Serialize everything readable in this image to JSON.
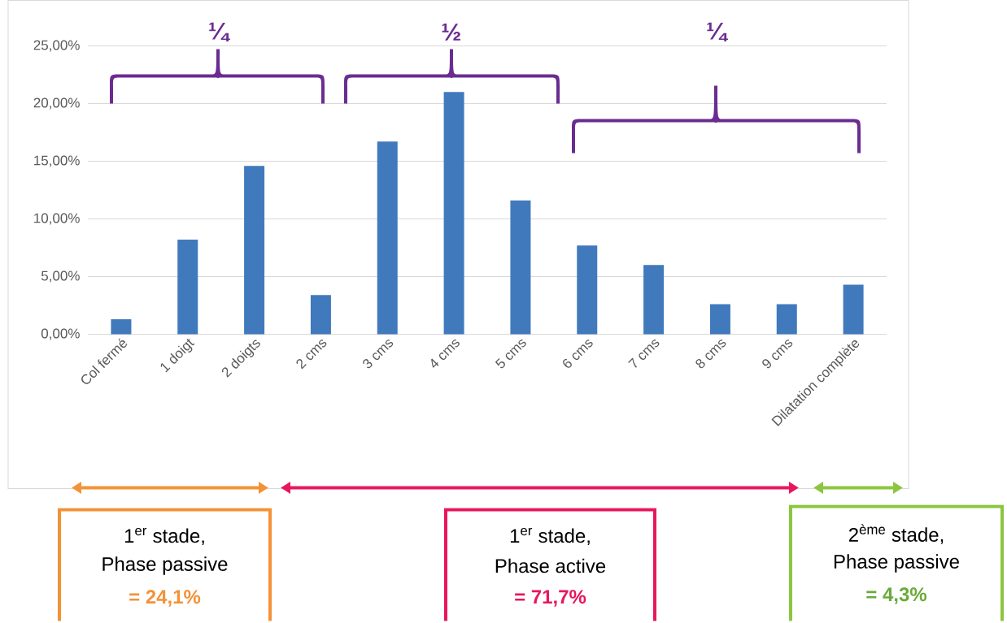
{
  "chart_data": {
    "type": "bar",
    "categories": [
      "Col fermé",
      "1 doigt",
      "2 doigts",
      "2 cms",
      "3 cms",
      "4 cms",
      "5 cms",
      "6 cms",
      "7 cms",
      "8 cms",
      "9 cms",
      "Dilatation complète"
    ],
    "values": [
      1.3,
      8.2,
      14.6,
      3.4,
      16.7,
      21.0,
      11.6,
      7.7,
      6.0,
      2.6,
      2.6,
      4.3
    ],
    "color": "#4179bd",
    "ylim": [
      0,
      25
    ],
    "yticks": [
      {
        "value": 0,
        "label": "0,00%"
      },
      {
        "value": 5,
        "label": "5,00%"
      },
      {
        "value": 10,
        "label": "10,00%"
      },
      {
        "value": 15,
        "label": "15,00%"
      },
      {
        "value": 20,
        "label": "20,00%"
      },
      {
        "value": 25,
        "label": "25,00%"
      }
    ],
    "grid": "y",
    "annotations": [
      "¼",
      "½",
      "¼",
      "1$^{er}$ stade,",
      "Phase passive",
      "= 24,1%",
      "1$^{er}$ stade,",
      "Phase active",
      "= 71,7%",
      "2$^{ème}$ stade,",
      "Phase passive",
      "= 4,3%"
    ]
  }
}
